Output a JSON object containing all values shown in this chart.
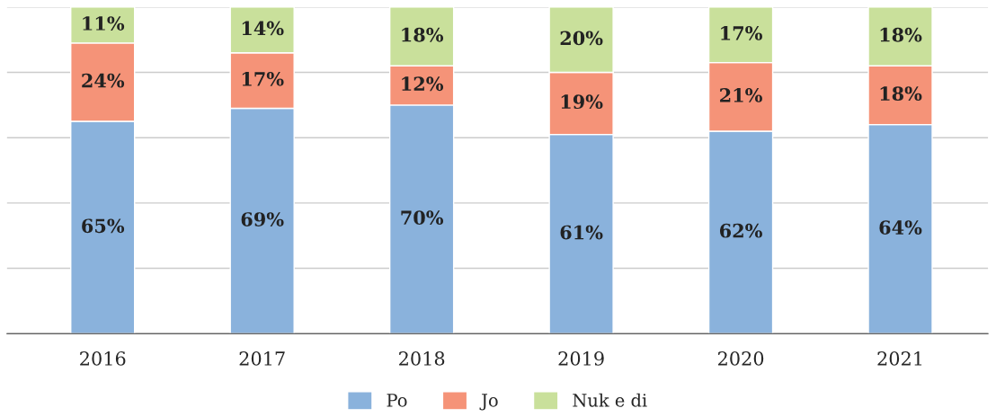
{
  "chart_data": {
    "type": "bar",
    "stacked": true,
    "categories": [
      "2016",
      "2017",
      "2018",
      "2019",
      "2020",
      "2021"
    ],
    "series": [
      {
        "name": "Po",
        "color": "#8ab2dc",
        "values": [
          65,
          69,
          70,
          61,
          62,
          64
        ],
        "value_labels": [
          "65%",
          "69%",
          "70%",
          "61%",
          "62%",
          "64%"
        ]
      },
      {
        "name": "Jo",
        "color": "#f59378",
        "values": [
          24,
          17,
          12,
          19,
          21,
          18
        ],
        "value_labels": [
          "24%",
          "17%",
          "12%",
          "19%",
          "21%",
          "18%"
        ]
      },
      {
        "name": "Nuk e di",
        "color": "#c9e09b",
        "values": [
          11,
          14,
          18,
          20,
          17,
          18
        ],
        "value_labels": [
          "11%",
          "14%",
          "18%",
          "20%",
          "17%",
          "18%"
        ]
      }
    ],
    "ylim": [
      0,
      100
    ],
    "yticks": [
      {
        "value": 0,
        "label": null
      },
      {
        "value": 20,
        "label": null
      },
      {
        "value": 40,
        "label": null
      },
      {
        "value": 60,
        "label": null
      },
      {
        "value": 80,
        "label": null
      },
      {
        "value": 100,
        "label": null
      }
    ],
    "grid": "y",
    "legend": "bottom",
    "tick_labels": "x"
  }
}
